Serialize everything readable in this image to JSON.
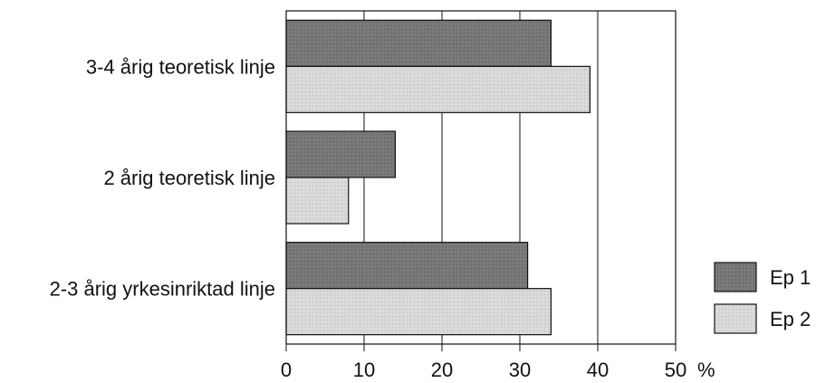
{
  "chart_data": {
    "type": "bar",
    "orientation": "horizontal",
    "categories": [
      "3-4 årig teoretisk linje",
      "2 årig teoretisk linje",
      "2-3 årig yrkesinriktad linje"
    ],
    "series": [
      {
        "name": "Ep 1",
        "values": [
          34,
          14,
          31
        ],
        "color": "#7a7a7a"
      },
      {
        "name": "Ep 2",
        "values": [
          39,
          8,
          34
        ],
        "color": "#d6d6d6"
      }
    ],
    "xlim": [
      0,
      50
    ],
    "xticks": [
      0,
      10,
      20,
      30,
      40,
      50
    ],
    "xunit": "%",
    "grid": true,
    "legend_position": "bottom-right"
  }
}
